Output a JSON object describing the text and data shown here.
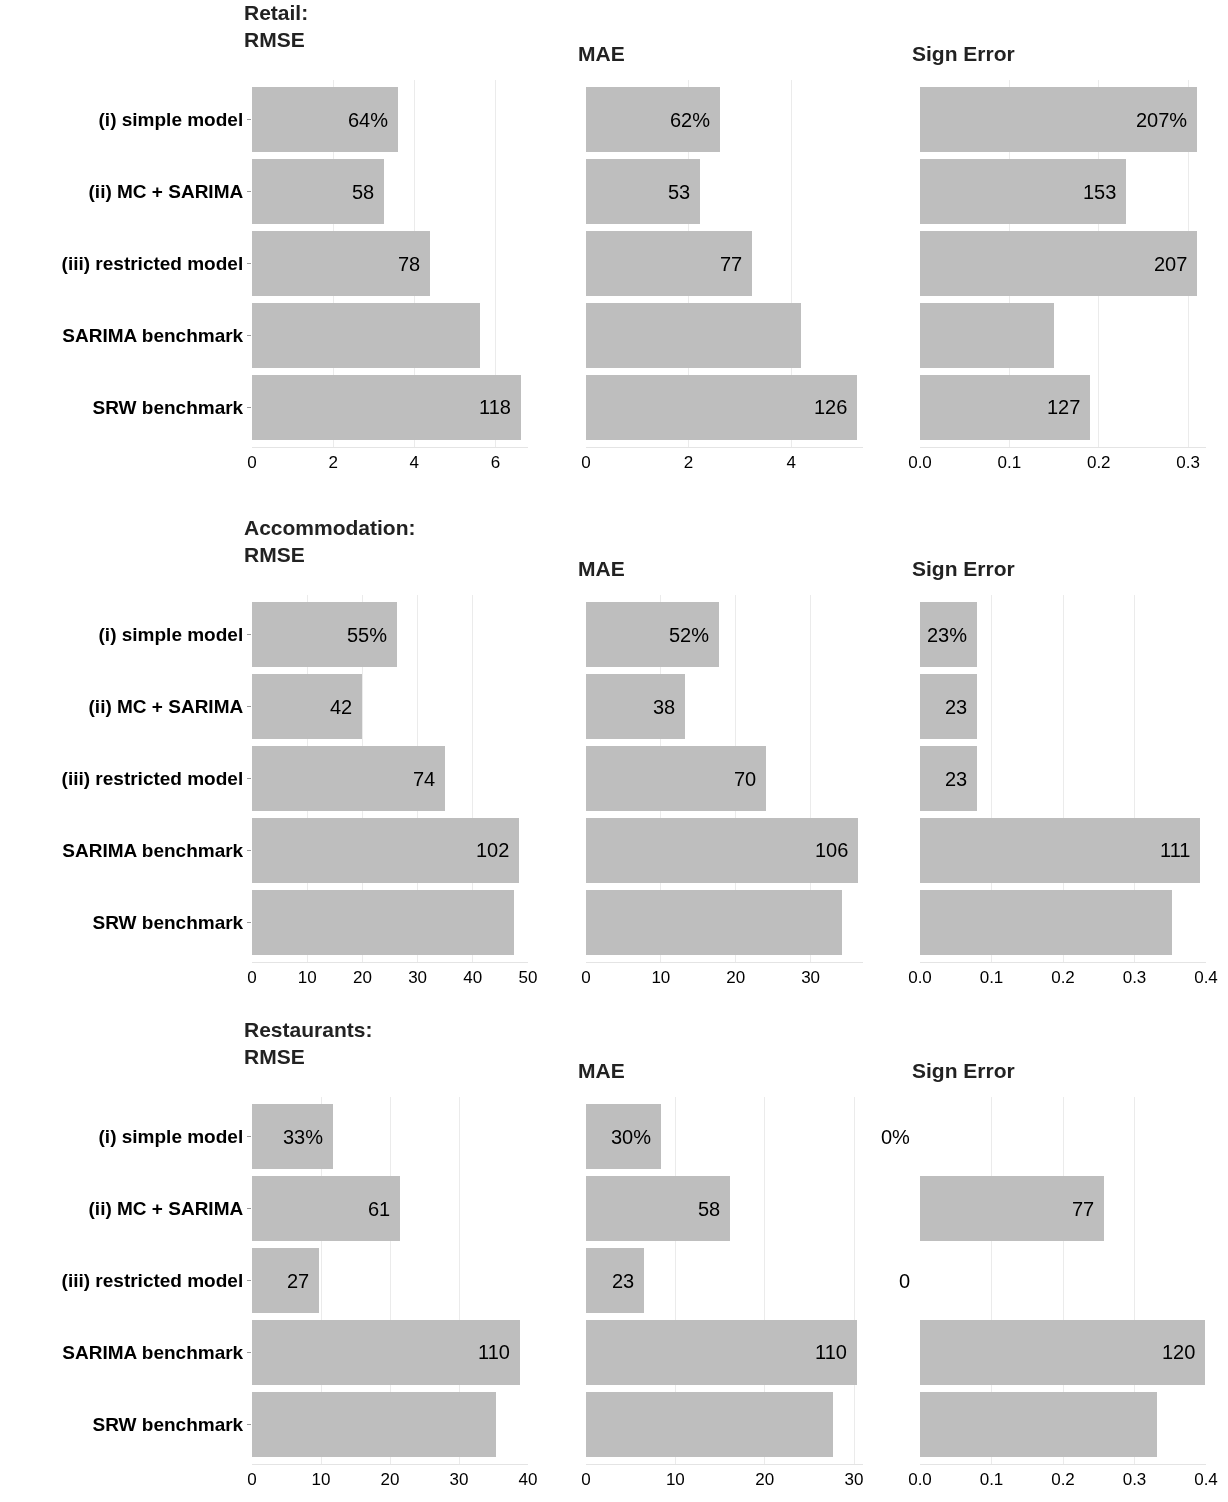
{
  "chart_data": [
    {
      "type": "bar",
      "orientation": "horizontal",
      "title": "Retail:\nRMSE",
      "categories": [
        "(i) simple model",
        "(ii) MC + SARIMA",
        "(iii) restricted model",
        "SARIMA benchmark",
        "SRW benchmark"
      ],
      "values": [
        3.6,
        3.26,
        4.38,
        5.62,
        6.63
      ],
      "color": "#bebebe",
      "annotations": [
        {
          "text": "64%",
          "x": 3.6,
          "y": "(i) simple model"
        },
        {
          "text": "58",
          "x": 3.26,
          "y": "(ii) MC + SARIMA"
        },
        {
          "text": "78",
          "x": 4.38,
          "y": "(iii) restricted model"
        },
        {
          "text": "118",
          "x": 6.63,
          "y": "SRW benchmark"
        }
      ],
      "xlim": [
        0,
        6.8
      ],
      "xticks": [
        0,
        2,
        4,
        6
      ],
      "grid": "x"
    },
    {
      "type": "bar",
      "orientation": "horizontal",
      "title": "MAE",
      "categories": [
        "(i) simple model",
        "(ii) MC + SARIMA",
        "(iii) restricted model",
        "SARIMA benchmark",
        "SRW benchmark"
      ],
      "values": [
        2.61,
        2.23,
        3.24,
        4.19,
        5.28
      ],
      "color": "#bebebe",
      "annotations": [
        {
          "text": "62%",
          "x": 2.61,
          "y": "(i) simple model"
        },
        {
          "text": "53",
          "x": 2.23,
          "y": "(ii) MC + SARIMA"
        },
        {
          "text": "77",
          "x": 3.24,
          "y": "(iii) restricted model"
        },
        {
          "text": "126",
          "x": 5.28,
          "y": "SRW benchmark"
        }
      ],
      "xlim": [
        0,
        5.4
      ],
      "xticks": [
        0,
        2,
        4
      ],
      "grid": "x",
      "tick_labels": "x"
    },
    {
      "type": "bar",
      "orientation": "horizontal",
      "title": "Sign Error",
      "categories": [
        "(i) simple model",
        "(ii) MC + SARIMA",
        "(iii) restricted model",
        "SARIMA benchmark",
        "SRW benchmark"
      ],
      "values": [
        0.31,
        0.23,
        0.31,
        0.15,
        0.19
      ],
      "color": "#bebebe",
      "annotations": [
        {
          "text": "207%",
          "x": 0.31,
          "y": "(i) simple model"
        },
        {
          "text": "153",
          "x": 0.23,
          "y": "(ii) MC + SARIMA"
        },
        {
          "text": "207",
          "x": 0.31,
          "y": "(iii) restricted model"
        },
        {
          "text": "127",
          "x": 0.19,
          "y": "SRW benchmark"
        }
      ],
      "xlim": [
        0,
        0.32
      ],
      "xticks": [
        {
          "value": 0,
          "label": "0.0"
        },
        {
          "value": 0.1,
          "label": "0.1"
        },
        {
          "value": 0.2,
          "label": "0.2"
        },
        {
          "value": 0.3,
          "label": "0.3"
        }
      ],
      "grid": "x",
      "tick_labels": "x"
    },
    {
      "type": "bar",
      "orientation": "horizontal",
      "title": "Accommodation:\nRMSE",
      "categories": [
        "(i) simple model",
        "(ii) MC + SARIMA",
        "(iii) restricted model",
        "SARIMA benchmark",
        "SRW benchmark"
      ],
      "values": [
        26.3,
        19.9,
        35,
        48.3,
        47.4
      ],
      "color": "#bebebe",
      "annotations": [
        {
          "text": "55%",
          "x": 26.3,
          "y": "(i) simple model"
        },
        {
          "text": "42",
          "x": 19.9,
          "y": "(ii) MC + SARIMA"
        },
        {
          "text": "74",
          "x": 35,
          "y": "(iii) restricted model"
        },
        {
          "text": "102",
          "x": 48.3,
          "y": "SARIMA benchmark"
        }
      ],
      "xlim": [
        0,
        50
      ],
      "xticks": [
        0,
        10,
        20,
        30,
        40,
        50
      ],
      "grid": "x"
    },
    {
      "type": "bar",
      "orientation": "horizontal",
      "title": "MAE",
      "categories": [
        "(i) simple model",
        "(ii) MC + SARIMA",
        "(iii) restricted model",
        "SARIMA benchmark",
        "SRW benchmark"
      ],
      "values": [
        17.8,
        13.2,
        24.1,
        36.3,
        34.2
      ],
      "color": "#bebebe",
      "annotations": [
        {
          "text": "52%",
          "x": 17.8,
          "y": "(i) simple model"
        },
        {
          "text": "38",
          "x": 13.2,
          "y": "(ii) MC + SARIMA"
        },
        {
          "text": "70",
          "x": 24.1,
          "y": "(iii) restricted model"
        },
        {
          "text": "106",
          "x": 36.3,
          "y": "SARIMA benchmark"
        }
      ],
      "xlim": [
        0,
        37
      ],
      "xticks": [
        0,
        10,
        20,
        30
      ],
      "grid": "x",
      "tick_labels": "x"
    },
    {
      "type": "bar",
      "orientation": "horizontal",
      "title": "Sign Error",
      "categories": [
        "(i) simple model",
        "(ii) MC + SARIMA",
        "(iii) restricted model",
        "SARIMA benchmark",
        "SRW benchmark"
      ],
      "values": [
        0.08,
        0.08,
        0.08,
        0.392,
        0.352
      ],
      "color": "#bebebe",
      "annotations": [
        {
          "text": "23%",
          "x": 0.08,
          "y": "(i) simple model"
        },
        {
          "text": "23",
          "x": 0.08,
          "y": "(ii) MC + SARIMA"
        },
        {
          "text": "23",
          "x": 0.08,
          "y": "(iii) restricted model"
        },
        {
          "text": "111",
          "x": 0.392,
          "y": "SARIMA benchmark"
        }
      ],
      "xlim": [
        0,
        0.4
      ],
      "xticks": [
        {
          "value": 0,
          "label": "0.0"
        },
        {
          "value": 0.1,
          "label": "0.1"
        },
        {
          "value": 0.2,
          "label": "0.2"
        },
        {
          "value": 0.3,
          "label": "0.3"
        },
        {
          "value": 0.4,
          "label": "0.4"
        }
      ],
      "grid": "x",
      "tick_labels": "x"
    },
    {
      "type": "bar",
      "orientation": "horizontal",
      "title": "Restaurants:\nRMSE",
      "categories": [
        "(i) simple model",
        "(ii) MC + SARIMA",
        "(iii) restricted model",
        "SARIMA benchmark",
        "SRW benchmark"
      ],
      "values": [
        11.8,
        21.5,
        9.7,
        38.9,
        35.4
      ],
      "color": "#bebebe",
      "annotations": [
        {
          "text": "33%",
          "x": 11.8,
          "y": "(i) simple model"
        },
        {
          "text": "61",
          "x": 21.5,
          "y": "(ii) MC + SARIMA"
        },
        {
          "text": "27",
          "x": 9.7,
          "y": "(iii) restricted model"
        },
        {
          "text": "110",
          "x": 38.9,
          "y": "SARIMA benchmark"
        }
      ],
      "xlim": [
        0,
        40
      ],
      "xticks": [
        0,
        10,
        20,
        30,
        40
      ],
      "grid": "x"
    },
    {
      "type": "bar",
      "orientation": "horizontal",
      "title": "MAE",
      "categories": [
        "(i) simple model",
        "(ii) MC + SARIMA",
        "(iii) restricted model",
        "SARIMA benchmark",
        "SRW benchmark"
      ],
      "values": [
        8.4,
        16.1,
        6.5,
        30.3,
        27.6
      ],
      "color": "#bebebe",
      "annotations": [
        {
          "text": "30%",
          "x": 8.4,
          "y": "(i) simple model"
        },
        {
          "text": "58",
          "x": 16.1,
          "y": "(ii) MC + SARIMA"
        },
        {
          "text": "23",
          "x": 6.5,
          "y": "(iii) restricted model"
        },
        {
          "text": "110",
          "x": 30.3,
          "y": "SARIMA benchmark"
        }
      ],
      "xlim": [
        0,
        31
      ],
      "xticks": [
        0,
        10,
        20,
        30
      ],
      "grid": "x",
      "tick_labels": "x"
    },
    {
      "type": "bar",
      "orientation": "horizontal",
      "title": "Sign Error",
      "categories": [
        "(i) simple model",
        "(ii) MC + SARIMA",
        "(iii) restricted model",
        "SARIMA benchmark",
        "SRW benchmark"
      ],
      "values": [
        0,
        0.258,
        0,
        0.399,
        0.332
      ],
      "color": "#bebebe",
      "annotations": [
        {
          "text": "0%",
          "x": 0,
          "y": "(i) simple model"
        },
        {
          "text": "77",
          "x": 0.258,
          "y": "(ii) MC + SARIMA"
        },
        {
          "text": "0",
          "x": 0,
          "y": "(iii) restricted model"
        },
        {
          "text": "120",
          "x": 0.399,
          "y": "SARIMA benchmark"
        }
      ],
      "xlim": [
        0,
        0.4
      ],
      "xticks": [
        {
          "value": 0,
          "label": "0.0"
        },
        {
          "value": 0.1,
          "label": "0.1"
        },
        {
          "value": 0.2,
          "label": "0.2"
        },
        {
          "value": 0.3,
          "label": "0.3"
        },
        {
          "value": 0.4,
          "label": "0.4"
        }
      ],
      "grid": "x",
      "tick_labels": "x"
    }
  ]
}
